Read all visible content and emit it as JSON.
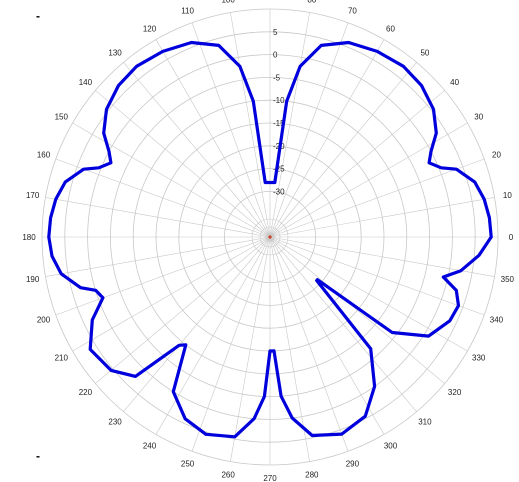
{
  "corner_marks": {
    "top_left": "-",
    "bottom_left": "-"
  },
  "chart_data": {
    "type": "polar",
    "title": "",
    "angle_unit": "degrees",
    "angle_direction": "counterclockwise",
    "zero_angle": "right",
    "angle_ticks": [
      0,
      10,
      20,
      30,
      40,
      50,
      60,
      70,
      80,
      90,
      100,
      110,
      120,
      130,
      140,
      150,
      160,
      170,
      180,
      190,
      200,
      210,
      220,
      230,
      240,
      250,
      260,
      270,
      280,
      290,
      300,
      310,
      320,
      330,
      340,
      350
    ],
    "angle_tick_labels": [
      "0",
      "10",
      "20",
      "30",
      "40",
      "50",
      "60",
      "70",
      "80",
      "90",
      "100",
      "110",
      "120",
      "130",
      "140",
      "150",
      "160",
      "170",
      "180",
      "190",
      "200",
      "210",
      "220",
      "230",
      "240",
      "250",
      "260",
      "270",
      "280",
      "290",
      "300",
      "310",
      "320",
      "330",
      "340",
      "350"
    ],
    "radial_range": [
      -40,
      10
    ],
    "radial_ticks": [
      -30,
      -25,
      -20,
      -15,
      -10,
      -5,
      0,
      5
    ],
    "radial_tick_labels": [
      "-30",
      "-25",
      "-20",
      "-15",
      "-10",
      "-5",
      "0",
      "5"
    ],
    "radial_label_angle": 90,
    "grid": true,
    "colors": {
      "series": "#0000dd",
      "grid": "#c8c8c8",
      "center": "#cc2200"
    },
    "series": [
      {
        "values_deg_db": [
          [
            0,
            8.5
          ],
          [
            5,
            8.3
          ],
          [
            10,
            7.7
          ],
          [
            15,
            6.5
          ],
          [
            20,
            3.5
          ],
          [
            22,
            0.5
          ],
          [
            25,
            -1.5
          ],
          [
            28,
            0
          ],
          [
            32,
            3
          ],
          [
            38,
            5.5
          ],
          [
            45,
            7
          ],
          [
            52,
            7.5
          ],
          [
            60,
            7
          ],
          [
            68,
            6
          ],
          [
            75,
            3.5
          ],
          [
            80,
            -2
          ],
          [
            83,
            -10
          ],
          [
            85,
            -28
          ],
          [
            95,
            -28
          ],
          [
            97,
            -10
          ],
          [
            100,
            -2
          ],
          [
            105,
            3.5
          ],
          [
            112,
            6
          ],
          [
            120,
            7
          ],
          [
            128,
            7.5
          ],
          [
            135,
            7
          ],
          [
            142,
            5.5
          ],
          [
            148,
            3
          ],
          [
            152,
            0
          ],
          [
            155,
            -1.5
          ],
          [
            158,
            0.5
          ],
          [
            160,
            3.5
          ],
          [
            165,
            6.5
          ],
          [
            170,
            7.7
          ],
          [
            175,
            8.3
          ],
          [
            180,
            8.5
          ],
          [
            185,
            8
          ],
          [
            190,
            6.5
          ],
          [
            195,
            3
          ],
          [
            197,
            0
          ],
          [
            200,
            -1
          ],
          [
            205,
            3
          ],
          [
            212,
            6.5
          ],
          [
            220,
            5.5
          ],
          [
            226,
            2.5
          ],
          [
            230,
            -9
          ],
          [
            232,
            -10
          ],
          [
            238,
            0
          ],
          [
            245,
            4
          ],
          [
            252,
            5.5
          ],
          [
            260,
            4.5
          ],
          [
            265,
            0
          ],
          [
            268,
            -5
          ],
          [
            270,
            -15
          ],
          [
            272,
            -15
          ],
          [
            274,
            -5
          ],
          [
            277,
            0
          ],
          [
            282,
            4.5
          ],
          [
            290,
            6
          ],
          [
            298,
            4.5
          ],
          [
            305,
            0
          ],
          [
            312,
            -7
          ],
          [
            317,
            -26
          ],
          [
            318,
            -26
          ],
          [
            322,
            -6
          ],
          [
            328,
            1
          ],
          [
            335,
            3.5
          ],
          [
            340,
            4
          ],
          [
            344,
            2.5
          ],
          [
            347,
            -1
          ],
          [
            350,
            2.5
          ],
          [
            355,
            6
          ],
          [
            360,
            8.5
          ]
        ]
      }
    ]
  }
}
